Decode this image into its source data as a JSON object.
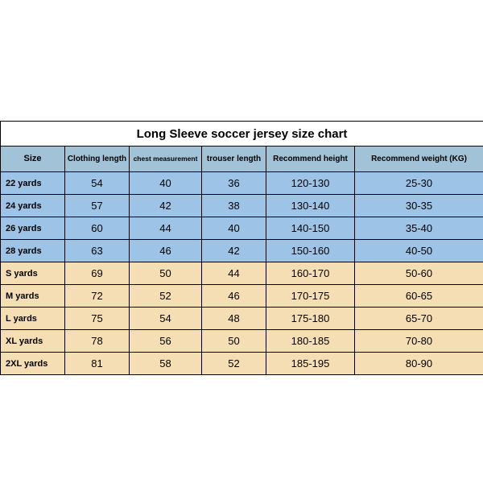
{
  "table": {
    "title": "Long Sleeve soccer jersey size chart",
    "columns": [
      {
        "label": "Size",
        "width": 80,
        "class": "hdr-size"
      },
      {
        "label": "Clothing length",
        "width": 80,
        "class": "hdr-wrap"
      },
      {
        "label": "chest measurement",
        "width": 90,
        "class": "hdr-chest"
      },
      {
        "label": "trouser length",
        "width": 80,
        "class": "hdr-wrap"
      },
      {
        "label": "Recommend height",
        "width": 110,
        "class": "hdr-wrap"
      },
      {
        "label": "Recommend weight (KG)",
        "width": 160,
        "class": ""
      }
    ],
    "rows": [
      {
        "group": "blue",
        "cells": [
          "22 yards",
          "54",
          "40",
          "36",
          "120-130",
          "25-30"
        ]
      },
      {
        "group": "blue",
        "cells": [
          "24 yards",
          "57",
          "42",
          "38",
          "130-140",
          "30-35"
        ]
      },
      {
        "group": "blue",
        "cells": [
          "26 yards",
          "60",
          "44",
          "40",
          "140-150",
          "35-40"
        ]
      },
      {
        "group": "blue",
        "cells": [
          "28 yards",
          "63",
          "46",
          "42",
          "150-160",
          "40-50"
        ]
      },
      {
        "group": "yellow",
        "cells": [
          "S yards",
          "69",
          "50",
          "44",
          "160-170",
          "50-60"
        ]
      },
      {
        "group": "yellow",
        "cells": [
          "M yards",
          "72",
          "52",
          "46",
          "170-175",
          "60-65"
        ]
      },
      {
        "group": "yellow",
        "cells": [
          "L yards",
          "75",
          "54",
          "48",
          "175-180",
          "65-70"
        ]
      },
      {
        "group": "yellow",
        "cells": [
          "XL yards",
          "78",
          "56",
          "50",
          "180-185",
          "70-80"
        ]
      },
      {
        "group": "yellow",
        "cells": [
          "2XL yards",
          "81",
          "58",
          "52",
          "185-195",
          "80-90"
        ]
      }
    ]
  }
}
